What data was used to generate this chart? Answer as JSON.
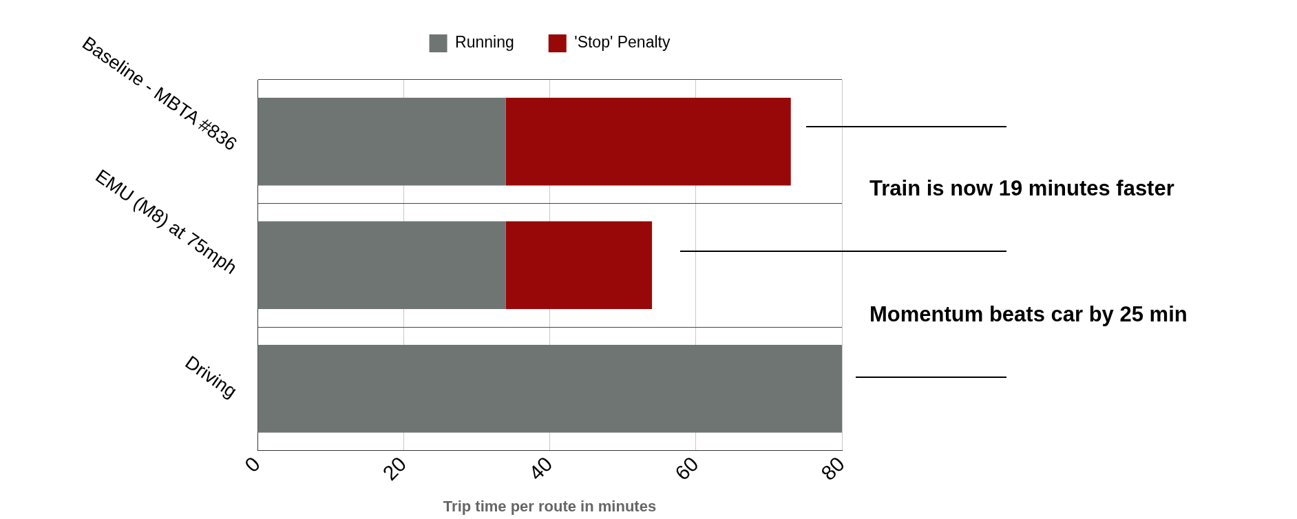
{
  "chart_data": {
    "type": "bar",
    "orientation": "horizontal",
    "stacked": true,
    "xlabel": "Trip time per route in minutes",
    "categories": [
      "Baseline - MBTA #836",
      "EMU (M8) at 75mph",
      "Driving"
    ],
    "series": [
      {
        "name": "Running",
        "color": "#6f7572",
        "values": [
          34,
          34,
          80
        ]
      },
      {
        "name": "'Stop' Penalty",
        "color": "#990808",
        "values": [
          39,
          20,
          null
        ]
      }
    ],
    "xlim": [
      0,
      80
    ],
    "xticks": [
      0,
      20,
      40,
      60,
      80
    ],
    "grid": true,
    "legend": "top",
    "annotations": [
      "Train is now 19 minutes faster",
      "Momentum beats car by 25 min"
    ]
  }
}
